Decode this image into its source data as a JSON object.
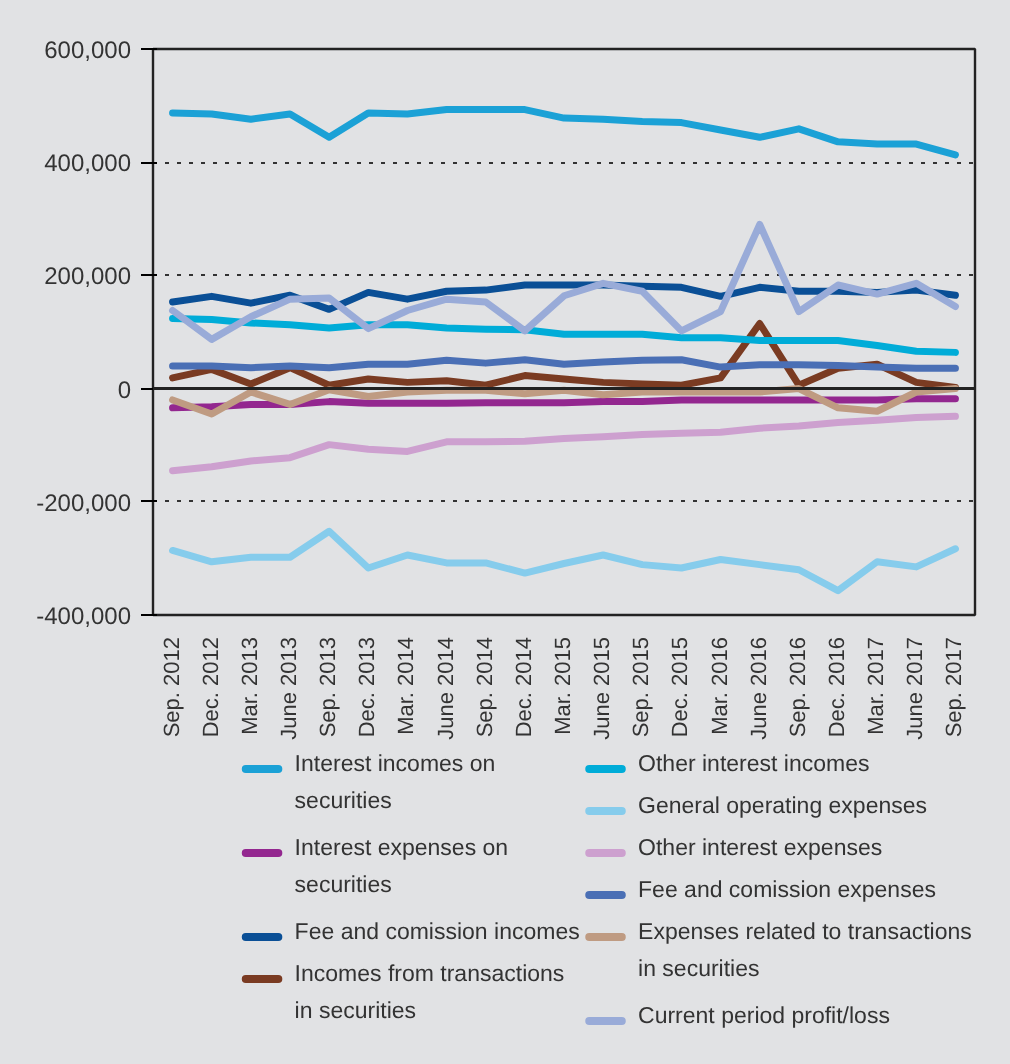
{
  "chart_data": {
    "type": "line",
    "categories": [
      "Sep. 2012",
      "Dec. 2012",
      "Mar. 2013",
      "June 2013",
      "Sep. 2013",
      "Dec. 2013",
      "Mar. 2014",
      "June 2014",
      "Sep. 2014",
      "Dec. 2014",
      "Mar. 2015",
      "June 2015",
      "Sep. 2015",
      "Dec. 2015",
      "Mar. 2016",
      "June 2016",
      "Sep. 2016",
      "Dec. 2016",
      "Mar. 2017",
      "June 2017",
      "Sep. 2017"
    ],
    "series": [
      {
        "name": "Interest incomes on securities",
        "color": "#1ba1d6",
        "values": [
          487000,
          485000,
          476000,
          485000,
          444000,
          487000,
          485000,
          493000,
          493000,
          493000,
          478000,
          476000,
          472000,
          470000,
          457000,
          444000,
          459000,
          436000,
          432000,
          432000,
          413000
        ]
      },
      {
        "name": "Interest expenses on securities",
        "color": "#93278f",
        "values": [
          -34000,
          -32000,
          -28000,
          -28000,
          -23000,
          -26000,
          -26000,
          -26000,
          -25000,
          -25000,
          -25000,
          -23000,
          -23000,
          -20000,
          -20000,
          -20000,
          -20000,
          -20000,
          -20000,
          -18000,
          -18000
        ]
      },
      {
        "name": "Fee and comission incomes",
        "color": "#0a4f96",
        "values": [
          153000,
          163000,
          151000,
          165000,
          140000,
          170000,
          158000,
          172000,
          174000,
          183000,
          183000,
          183000,
          181000,
          179000,
          163000,
          179000,
          172000,
          172000,
          170000,
          174000,
          165000
        ]
      },
      {
        "name": "Incomes from transactions in securities",
        "color": "#7a3b22",
        "values": [
          19000,
          34000,
          8000,
          37000,
          6000,
          17000,
          11000,
          14000,
          6000,
          23000,
          17000,
          11000,
          8000,
          6000,
          19000,
          115000,
          6000,
          36000,
          43000,
          11000,
          2000
        ]
      },
      {
        "name": "Other interest incomes",
        "color": "#00acd8",
        "values": [
          124000,
          122000,
          116000,
          113000,
          107000,
          113000,
          113000,
          107000,
          105000,
          104000,
          96000,
          96000,
          96000,
          90000,
          90000,
          85000,
          85000,
          85000,
          76000,
          66000,
          64000
        ]
      },
      {
        "name": "General operating expenses",
        "color": "#86ccec",
        "values": [
          -286000,
          -306000,
          -298000,
          -298000,
          -252000,
          -317000,
          -294000,
          -308000,
          -308000,
          -326000,
          -309000,
          -294000,
          -311000,
          -317000,
          -302000,
          -311000,
          -320000,
          -357000,
          -306000,
          -315000,
          -283000
        ]
      },
      {
        "name": "Other interest expenses",
        "color": "#cda0cf",
        "values": [
          -145000,
          -138000,
          -128000,
          -122000,
          -99000,
          -107000,
          -111000,
          -94000,
          -94000,
          -93000,
          -88000,
          -85000,
          -81000,
          -79000,
          -77000,
          -70000,
          -66000,
          -60000,
          -56000,
          -51000,
          -49000
        ]
      },
      {
        "name": "Fee and comission expenses",
        "color": "#4a6fb5",
        "values": [
          40000,
          40000,
          37000,
          40000,
          37000,
          43000,
          43000,
          50000,
          45000,
          51000,
          43000,
          47000,
          50000,
          51000,
          38000,
          42000,
          42000,
          41000,
          38000,
          36000,
          36000
        ]
      },
      {
        "name": "Expenses related to transactions in securities",
        "color": "#bf9b82",
        "values": [
          -20000,
          -45000,
          -6000,
          -28000,
          -2000,
          -14000,
          -6000,
          -3000,
          -3000,
          -9000,
          -3000,
          -11000,
          -6000,
          -6000,
          -6000,
          -6000,
          0,
          -34000,
          -40000,
          -6000,
          0
        ]
      },
      {
        "name": "Current period profit/loss",
        "color": "#99abd8",
        "values": [
          138000,
          87000,
          127000,
          158000,
          160000,
          106000,
          138000,
          158000,
          153000,
          102000,
          164000,
          186000,
          172000,
          102000,
          136000,
          290000,
          136000,
          183000,
          167000,
          186000,
          145000
        ]
      }
    ],
    "ylim": [
      -400000,
      600000
    ],
    "yticks": [
      {
        "value": -400000,
        "label": "-400,000"
      },
      {
        "value": -200000,
        "label": "-200,000"
      },
      {
        "value": 0,
        "label": "0"
      },
      {
        "value": 200000,
        "label": "200,000"
      },
      {
        "value": 400000,
        "label": "400,000"
      },
      {
        "value": 600000,
        "label": "600,000"
      }
    ],
    "grid": "y",
    "ref_lines": [
      {
        "axis": "y",
        "value": 0
      }
    ],
    "line_style": "solid",
    "marker": "none",
    "legend": "bottom"
  }
}
